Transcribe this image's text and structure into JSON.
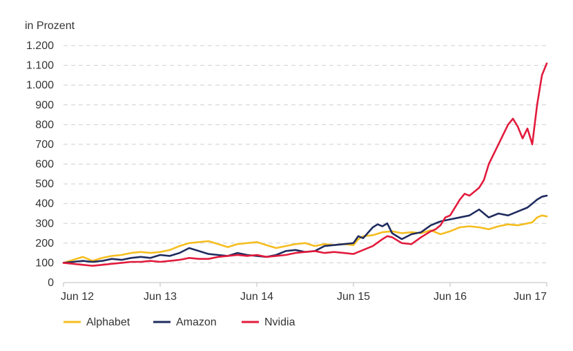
{
  "chart_data": {
    "type": "line",
    "ylabel": "in Prozent",
    "ylim": [
      0,
      1200
    ],
    "yticks": [
      0,
      100,
      200,
      300,
      400,
      500,
      600,
      700,
      800,
      900,
      1000,
      1100,
      1200
    ],
    "ytick_labels": [
      "0",
      "100",
      "200",
      "300",
      "400",
      "500",
      "600",
      "700",
      "800",
      "900",
      "1.000",
      "1.100",
      "1.200"
    ],
    "x_tick_labels": [
      "Jun 12",
      "Jun 13",
      "Jun 14",
      "Jun 15",
      "Jun 16",
      "Jun 17"
    ],
    "x_tick_values": [
      2012.5,
      2013.5,
      2014.5,
      2015.5,
      2016.5,
      2017.5
    ],
    "xlim": [
      2012.5,
      2017.5
    ],
    "grid": "horizontal dashed",
    "legend_position": "bottom-left",
    "series": [
      {
        "name": "Alphabet",
        "color": "#f5bd1f",
        "x": [
          2012.5,
          2012.6,
          2012.7,
          2012.8,
          2012.9,
          2013.0,
          2013.1,
          2013.2,
          2013.3,
          2013.4,
          2013.5,
          2013.6,
          2013.7,
          2013.8,
          2013.9,
          2014.0,
          2014.1,
          2014.2,
          2014.3,
          2014.4,
          2014.5,
          2014.6,
          2014.7,
          2014.8,
          2014.9,
          2015.0,
          2015.1,
          2015.2,
          2015.3,
          2015.4,
          2015.5,
          2015.55,
          2015.6,
          2015.7,
          2015.8,
          2015.9,
          2016.0,
          2016.1,
          2016.2,
          2016.3,
          2016.4,
          2016.5,
          2016.6,
          2016.7,
          2016.8,
          2016.9,
          2017.0,
          2017.1,
          2017.2,
          2017.3,
          2017.35,
          2017.4,
          2017.45,
          2017.5
        ],
        "values": [
          100,
          115,
          130,
          110,
          125,
          135,
          140,
          150,
          155,
          150,
          155,
          165,
          185,
          200,
          205,
          210,
          195,
          180,
          195,
          200,
          205,
          190,
          175,
          185,
          195,
          200,
          185,
          195,
          190,
          195,
          190,
          220,
          235,
          240,
          255,
          260,
          250,
          255,
          250,
          265,
          245,
          260,
          280,
          285,
          280,
          270,
          285,
          295,
          290,
          300,
          305,
          330,
          340,
          335
        ]
      },
      {
        "name": "Amazon",
        "color": "#1e2b5e",
        "x": [
          2012.5,
          2012.6,
          2012.7,
          2012.8,
          2012.9,
          2013.0,
          2013.1,
          2013.2,
          2013.3,
          2013.4,
          2013.5,
          2013.6,
          2013.7,
          2013.8,
          2013.9,
          2014.0,
          2014.1,
          2014.2,
          2014.3,
          2014.4,
          2014.5,
          2014.6,
          2014.7,
          2014.8,
          2014.9,
          2015.0,
          2015.1,
          2015.2,
          2015.3,
          2015.4,
          2015.5,
          2015.55,
          2015.6,
          2015.7,
          2015.75,
          2015.8,
          2015.85,
          2015.9,
          2016.0,
          2016.1,
          2016.2,
          2016.3,
          2016.4,
          2016.5,
          2016.6,
          2016.7,
          2016.8,
          2016.9,
          2017.0,
          2017.1,
          2017.2,
          2017.3,
          2017.35,
          2017.4,
          2017.45,
          2017.5
        ],
        "values": [
          100,
          105,
          110,
          105,
          110,
          120,
          115,
          125,
          130,
          125,
          140,
          135,
          150,
          175,
          160,
          145,
          140,
          135,
          150,
          140,
          135,
          130,
          140,
          160,
          165,
          155,
          160,
          185,
          190,
          195,
          200,
          235,
          225,
          280,
          295,
          285,
          300,
          250,
          220,
          245,
          255,
          290,
          310,
          320,
          330,
          340,
          370,
          330,
          350,
          340,
          360,
          380,
          400,
          420,
          435,
          440
        ]
      },
      {
        "name": "Nvidia",
        "color": "#e21a3c",
        "x": [
          2012.5,
          2012.6,
          2012.7,
          2012.8,
          2012.9,
          2013.0,
          2013.1,
          2013.2,
          2013.3,
          2013.4,
          2013.5,
          2013.6,
          2013.7,
          2013.8,
          2013.9,
          2014.0,
          2014.1,
          2014.2,
          2014.3,
          2014.4,
          2014.5,
          2014.6,
          2014.7,
          2014.8,
          2014.9,
          2015.0,
          2015.1,
          2015.2,
          2015.3,
          2015.4,
          2015.5,
          2015.6,
          2015.7,
          2015.8,
          2015.85,
          2015.9,
          2016.0,
          2016.1,
          2016.2,
          2016.3,
          2016.35,
          2016.4,
          2016.45,
          2016.5,
          2016.55,
          2016.6,
          2016.65,
          2016.7,
          2016.75,
          2016.8,
          2016.85,
          2016.9,
          2016.95,
          2017.0,
          2017.05,
          2017.1,
          2017.15,
          2017.2,
          2017.25,
          2017.3,
          2017.35,
          2017.4,
          2017.45,
          2017.5
        ],
        "values": [
          100,
          95,
          90,
          85,
          90,
          95,
          100,
          105,
          105,
          110,
          105,
          110,
          115,
          125,
          120,
          120,
          130,
          135,
          140,
          135,
          140,
          130,
          135,
          140,
          150,
          155,
          160,
          150,
          155,
          150,
          145,
          165,
          185,
          220,
          235,
          230,
          200,
          195,
          230,
          260,
          270,
          290,
          330,
          340,
          380,
          420,
          450,
          440,
          460,
          480,
          520,
          600,
          650,
          700,
          750,
          800,
          830,
          790,
          730,
          780,
          700,
          900,
          1050,
          1110
        ]
      }
    ]
  }
}
